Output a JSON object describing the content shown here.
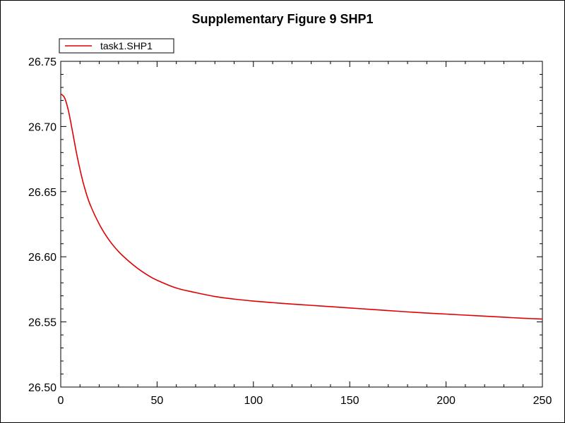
{
  "chart_data": {
    "type": "line",
    "title": "Supplementary Figure 9 SHP1",
    "xlabel": "",
    "ylabel": "",
    "xlim": [
      0,
      250
    ],
    "ylim": [
      26.5,
      26.75
    ],
    "x_ticks": [
      0,
      50,
      100,
      150,
      200,
      250
    ],
    "x_tick_labels": [
      "0",
      "50",
      "100",
      "150",
      "200",
      "250"
    ],
    "y_ticks": [
      26.5,
      26.55,
      26.6,
      26.65,
      26.7,
      26.75
    ],
    "y_tick_labels": [
      "26.50",
      "26.55",
      "26.60",
      "26.65",
      "26.70",
      "26.75"
    ],
    "grid": false,
    "legend_position": "top-left",
    "series": [
      {
        "name": "task1.SHP1",
        "color": "#e00000",
        "x": [
          0,
          2,
          4,
          6,
          8,
          10,
          12,
          15,
          20,
          25,
          30,
          35,
          40,
          45,
          50,
          60,
          70,
          80,
          90,
          100,
          110,
          120,
          130,
          140,
          150,
          160,
          170,
          180,
          190,
          200,
          210,
          220,
          230,
          240,
          250
        ],
        "y": [
          26.725,
          26.722,
          26.712,
          26.697,
          26.681,
          26.667,
          26.655,
          26.641,
          26.625,
          26.613,
          26.604,
          26.597,
          26.591,
          26.586,
          26.582,
          26.576,
          26.5725,
          26.5695,
          26.5675,
          26.566,
          26.5648,
          26.5637,
          26.5627,
          26.5617,
          26.5607,
          26.5597,
          26.5587,
          26.5577,
          26.5568,
          26.556,
          26.5552,
          26.5544,
          26.5536,
          26.5528,
          26.5522
        ]
      }
    ]
  }
}
